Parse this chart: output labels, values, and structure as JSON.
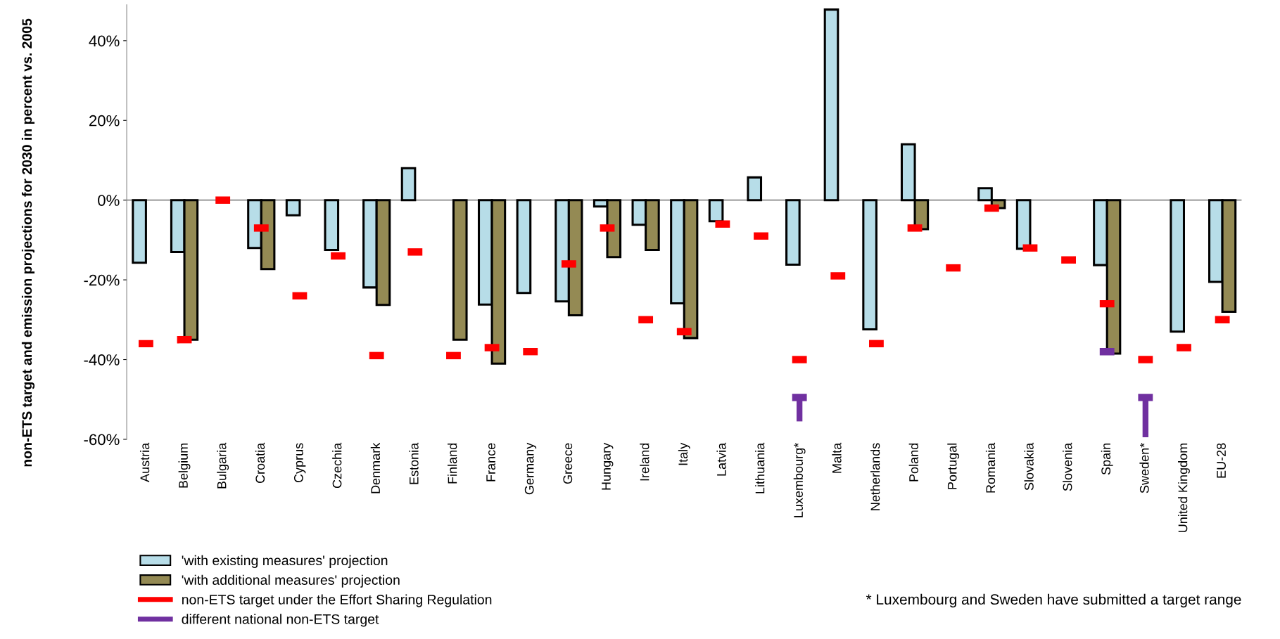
{
  "chart_data": {
    "type": "bar",
    "ylabel": "non-ETS target and emission projections for 2030 in percent vs. 2005",
    "categories": [
      "Austria",
      "Belgium",
      "Bulgaria",
      "Croatia",
      "Cyprus",
      "Czechia",
      "Denmark",
      "Estonia",
      "Finland",
      "France",
      "Germany",
      "Greece",
      "Hungary",
      "Ireland",
      "Italy",
      "Latvia",
      "Lithuania",
      "Luxembourg*",
      "Malta",
      "Netherlands",
      "Poland",
      "Portugal",
      "Romania",
      "Slovakia",
      "Slovenia",
      "Spain",
      "Sweden*",
      "United Kingdom",
      "EU-28"
    ],
    "series": [
      {
        "name": "'with existing measures' projection",
        "color": "#b7dde8",
        "values": [
          -15.7,
          -13,
          null,
          -12,
          -3.8,
          -12.5,
          -21.9,
          8,
          null,
          -26.2,
          -23.3,
          -25.4,
          -1.6,
          -6.2,
          -25.9,
          -5.3,
          5.7,
          -16.2,
          47.8,
          -32.4,
          14,
          null,
          3,
          -12.2,
          null,
          -16.3,
          null,
          -33,
          -20.5
        ]
      },
      {
        "name": "'with additional measures' projection",
        "color": "#948a54",
        "values": [
          null,
          -35,
          null,
          -17.3,
          null,
          null,
          -26.3,
          null,
          -35,
          -41,
          null,
          -28.9,
          -14.3,
          -12.5,
          -34.6,
          null,
          null,
          null,
          null,
          null,
          -7.3,
          null,
          -2,
          null,
          null,
          -38.5,
          null,
          null,
          -28
        ]
      },
      {
        "name": "non-ETS target under the Effort Sharing Regulation",
        "type": "scatter",
        "color": "#ff0000",
        "values": [
          -36,
          -35,
          0,
          -7,
          -24,
          -14,
          -39,
          -13,
          -39,
          -37,
          -38,
          -16,
          -7,
          -30,
          -33,
          -6,
          -9,
          -40,
          -19,
          -36,
          -7,
          -17,
          -2,
          -12,
          -15,
          -26,
          -40,
          -37,
          -30
        ]
      },
      {
        "name": "different national non-ETS target",
        "type": "scatter",
        "color": "#7030a0",
        "values": [
          null,
          null,
          null,
          null,
          null,
          null,
          null,
          null,
          null,
          null,
          null,
          null,
          null,
          null,
          null,
          null,
          null,
          -49.5,
          null,
          null,
          null,
          null,
          null,
          null,
          null,
          -38,
          -49.5,
          null,
          null
        ],
        "errors": [
          null,
          null,
          null,
          null,
          null,
          null,
          null,
          null,
          null,
          null,
          null,
          null,
          null,
          null,
          null,
          null,
          null,
          [
            -55.5,
            -49.5
          ],
          null,
          null,
          null,
          null,
          null,
          null,
          null,
          null,
          [
            -59.5,
            -49.5
          ],
          null,
          null
        ]
      }
    ],
    "ylim": [
      -60,
      49
    ],
    "yticks": [
      {
        "value": -60,
        "label": "-60%"
      },
      {
        "value": -40,
        "label": "-40%"
      },
      {
        "value": -20,
        "label": "-20%"
      },
      {
        "value": 0,
        "label": "0%"
      },
      {
        "value": 20,
        "label": "20%"
      },
      {
        "value": 40,
        "label": "40%"
      }
    ],
    "grid": false,
    "ref_lines": [
      {
        "axis": "y",
        "value": 0,
        "color": "#888888"
      }
    ],
    "legend": "bottom left",
    "annotations": [
      "* Luxembourg and Sweden have submitted a target range"
    ]
  }
}
